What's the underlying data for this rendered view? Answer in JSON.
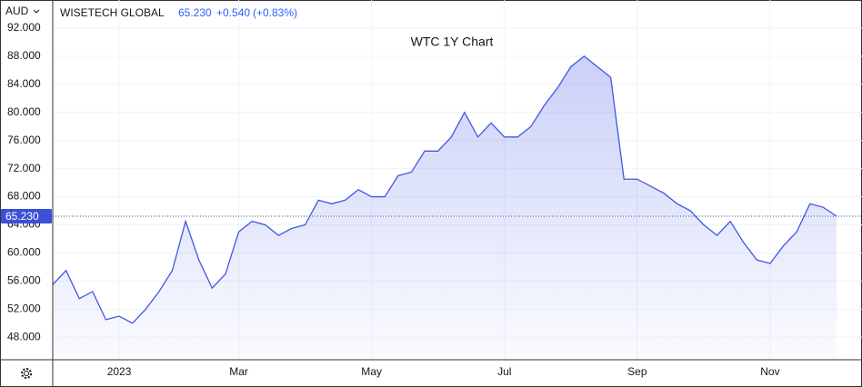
{
  "header": {
    "currency": "AUD",
    "name": "WISETECH GLOBAL",
    "price": "65.230",
    "change": "+0.540",
    "change_pct": "(+0.83%)"
  },
  "chart_data": {
    "type": "area",
    "title": "WTC 1Y Chart",
    "categories": [
      null,
      null,
      null,
      null,
      null,
      "2023",
      null,
      null,
      null,
      null,
      null,
      null,
      null,
      null,
      "Mar",
      null,
      null,
      null,
      null,
      null,
      null,
      null,
      null,
      null,
      "May",
      null,
      null,
      null,
      null,
      null,
      null,
      null,
      null,
      null,
      "Jul",
      null,
      null,
      null,
      null,
      null,
      null,
      null,
      null,
      null,
      "Sep",
      null,
      null,
      null,
      null,
      null,
      null,
      null,
      null,
      null,
      "Nov",
      null,
      null,
      null,
      null,
      null
    ],
    "values": [
      55.5,
      57.5,
      53.5,
      54.5,
      50.5,
      51,
      50,
      52,
      54.5,
      57.5,
      64.5,
      59,
      55,
      57,
      63,
      64.5,
      64,
      62.5,
      63.5,
      64,
      67.5,
      67,
      67.5,
      69,
      68,
      68,
      71,
      71.5,
      74.5,
      74.5,
      76.5,
      80,
      76.5,
      78.5,
      76.5,
      76.5,
      78,
      81,
      83.5,
      86.5,
      88,
      86.5,
      85,
      70.5,
      70.5,
      69.5,
      68.5,
      67,
      66,
      64,
      62.5,
      64.5,
      61.5,
      59,
      58.5,
      61,
      63,
      67,
      66.5,
      65.23
    ],
    "color": "#4057e3",
    "ylim": [
      44.8,
      96
    ],
    "yticks": [
      {
        "value": 48,
        "label": "48.000"
      },
      {
        "value": 52,
        "label": "52.000"
      },
      {
        "value": 56,
        "label": "56.000"
      },
      {
        "value": 60,
        "label": "60.000"
      },
      {
        "value": 64,
        "label": "64.000"
      },
      {
        "value": 68,
        "label": "68.000"
      },
      {
        "value": 72,
        "label": "72.000"
      },
      {
        "value": 76,
        "label": "76.000"
      },
      {
        "value": 80,
        "label": "80.000"
      },
      {
        "value": 84,
        "label": "84.000"
      },
      {
        "value": 88,
        "label": "88.000"
      },
      {
        "value": 92,
        "label": "92.000"
      }
    ],
    "grid": true
  }
}
